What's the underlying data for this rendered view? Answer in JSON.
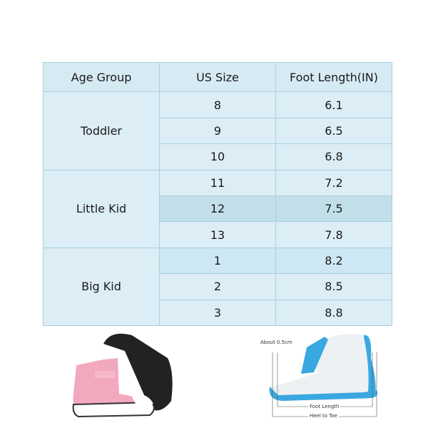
{
  "size_chart": {
    "headers": [
      "Age Group",
      "US Size",
      "Foot Length(IN)"
    ],
    "groups": [
      {
        "age_group": "Toddler",
        "rows": [
          {
            "us_size": "8",
            "foot_length": "6.1"
          },
          {
            "us_size": "9",
            "foot_length": "6.5"
          },
          {
            "us_size": "10",
            "foot_length": "6.8"
          }
        ]
      },
      {
        "age_group": "Little Kid",
        "rows": [
          {
            "us_size": "11",
            "foot_length": "7.2"
          },
          {
            "us_size": "12",
            "foot_length": "7.5"
          },
          {
            "us_size": "13",
            "foot_length": "7.8"
          }
        ]
      },
      {
        "age_group": "Big Kid",
        "rows": [
          {
            "us_size": "1",
            "foot_length": "8.2"
          },
          {
            "us_size": "2",
            "foot_length": "8.5"
          },
          {
            "us_size": "3",
            "foot_length": "8.8"
          }
        ]
      }
    ]
  },
  "measure_diagram": {
    "allowance_label": "About 0.5cm",
    "foot_length_label": "Foot Length",
    "heel_to_toe_label": "Heel to Toe"
  },
  "colors": {
    "table_bg": "#dcedf6",
    "border": "#a8cfe0",
    "shoe_pink": "#f2a9bd",
    "boot_blue": "#3aa8e0"
  }
}
